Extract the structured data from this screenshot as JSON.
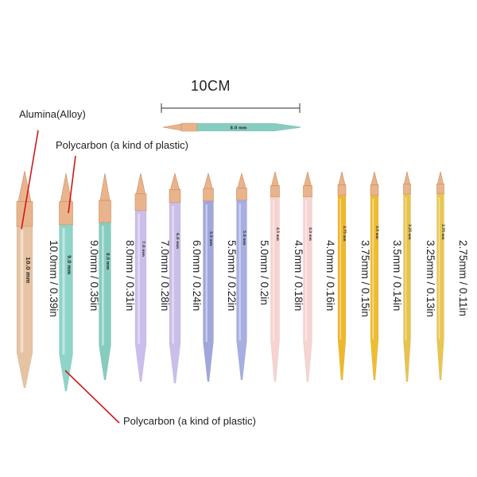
{
  "scale_label": "10CM",
  "annotations": {
    "alumina": "Alumina(Alloy)",
    "polycarbon_top": "Polycarbon (a kind of plastic)",
    "polycarbon_bottom": "Polycarbon (a kind of plastic)"
  },
  "reference_needle": {
    "size_mark": "8.0 mm",
    "color": "#86cdbf"
  },
  "colors": {
    "tip_gold": "#e9b48c",
    "tip_gold_dark": "#c98a5e",
    "pointer_line": "#cc1a1a",
    "scale_line": "#555555"
  },
  "needles": [
    {
      "size": "10.0mm / 0.39in",
      "mark": "10.0 mm",
      "color": "#e6c3a3"
    },
    {
      "size": "9.0mm / 0.35in",
      "mark": "9.0 mm",
      "color": "#8fd4c8"
    },
    {
      "size": "8.0mm / 0.31in",
      "mark": "8.0 mm",
      "color": "#86cdbf"
    },
    {
      "size": "7.0mm / 0.28in",
      "mark": "7.0 mm",
      "color": "#cbbdec"
    },
    {
      "size": "6.0mm / 0.24in",
      "mark": "6.0 mm",
      "color": "#c9bfe8"
    },
    {
      "size": "5.5mm / 0.22in",
      "mark": "5.5 mm",
      "color": "#9fa7db"
    },
    {
      "size": "5.0mm / 0.2in",
      "mark": "5.0 mm",
      "color": "#a6aee2"
    },
    {
      "size": "4.5mm / 0.18in",
      "mark": "4.5 mm",
      "color": "#f7d3d0"
    },
    {
      "size": "4.0mm / 0.16in",
      "mark": "4.0 mm",
      "color": "#f6d4d2"
    },
    {
      "size": "3.75mm / 0.15in",
      "mark": "3.75 mm",
      "color": "#efb82b"
    },
    {
      "size": "3.5mm / 0.14in",
      "mark": "3.5 mm",
      "color": "#efbd32"
    },
    {
      "size": "3.25mm / 0.13in",
      "mark": "3.25 mm",
      "color": "#e9c24c"
    },
    {
      "size": "2.75mm / 0.11in",
      "mark": "2.75 mm",
      "color": "#e8c651"
    }
  ]
}
